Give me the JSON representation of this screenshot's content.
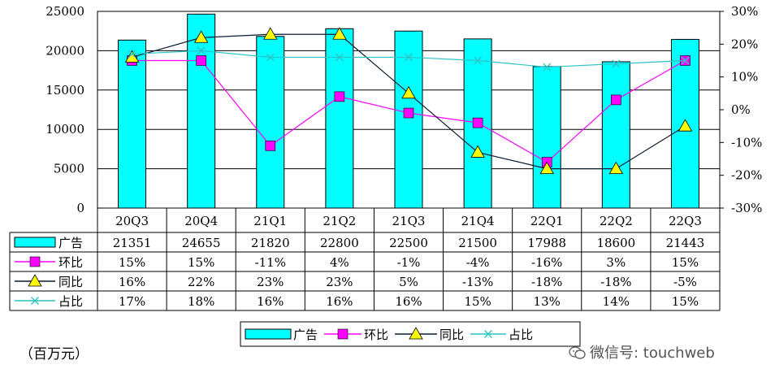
{
  "chart_data": {
    "type": "bar",
    "categories": [
      "20Q3",
      "20Q4",
      "21Q1",
      "21Q2",
      "21Q3",
      "21Q4",
      "22Q1",
      "22Q2",
      "22Q3"
    ],
    "left_axis": {
      "range": [
        0,
        25000
      ],
      "ticks": [
        0,
        5000,
        10000,
        15000,
        20000,
        25000
      ]
    },
    "right_axis": {
      "range": [
        -30,
        30
      ],
      "ticks": [
        "30%",
        "20%",
        "10%",
        "0%",
        "-10%",
        "-20%",
        "-30%"
      ]
    },
    "series": [
      {
        "name": "广告",
        "axis": "left",
        "kind": "bar",
        "color": "#00FFFF",
        "values": [
          21351,
          24655,
          21820,
          22800,
          22500,
          21500,
          17988,
          18600,
          21443
        ],
        "labels": [
          "21351",
          "24655",
          "21820",
          "22800",
          "22500",
          "21500",
          "17988",
          "18600",
          "21443"
        ]
      },
      {
        "name": "环比",
        "axis": "right",
        "kind": "line-square",
        "color": "#FF00FF",
        "values": [
          15,
          15,
          -11,
          4,
          -1,
          -4,
          -16,
          3,
          15
        ],
        "labels": [
          "15%",
          "15%",
          "-11%",
          "4%",
          "-1%",
          "-4%",
          "-16%",
          "3%",
          "15%"
        ]
      },
      {
        "name": "同比",
        "axis": "right",
        "kind": "line-triangle",
        "color": "#0B1D33",
        "values": [
          16,
          22,
          23,
          23,
          5,
          -13,
          -18,
          -18,
          -5
        ],
        "labels": [
          "16%",
          "22%",
          "23%",
          "23%",
          "5%",
          "-13%",
          "-18%",
          "-18%",
          "-5%"
        ]
      },
      {
        "name": "占比",
        "axis": "right",
        "kind": "line-x",
        "color": "#2CC4C4",
        "values": [
          17,
          18,
          16,
          16,
          16,
          15,
          13,
          14,
          15
        ],
        "labels": [
          "17%",
          "18%",
          "16%",
          "16%",
          "16%",
          "15%",
          "13%",
          "14%",
          "15%"
        ]
      }
    ],
    "legend_position": "bottom",
    "grid": true
  },
  "unit_label": "（百万元）",
  "watermark": "微信号: touchweb"
}
